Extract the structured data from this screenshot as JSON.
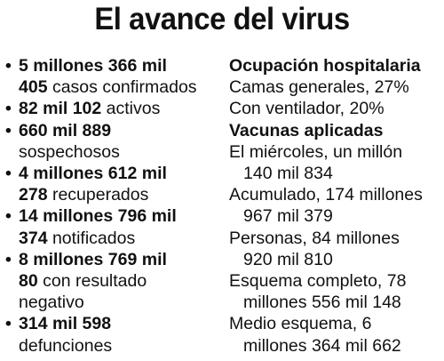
{
  "title": "El avance del virus",
  "stats": [
    {
      "l1b": "5 millones 366 mil",
      "l2b": "405",
      "l2t": " casos confirmados",
      "l3": ""
    },
    {
      "l1b": "82 mil 102",
      "l1t": " activos"
    },
    {
      "l1b": "660 mil 889",
      "l2t": "sospechosos"
    },
    {
      "l1b": "4 millones 612 mil",
      "l2b": "278",
      "l2t": " recuperados"
    },
    {
      "l1b": "14 millones 796 mil",
      "l2b": "374",
      "l2t": " notificados"
    },
    {
      "l1b": "8 millones 769 mil",
      "l2b": "80",
      "l2t": " con resultado",
      "l3": "negativo"
    },
    {
      "l1b": "314 mil 598",
      "l2t": "defunciones"
    }
  ],
  "hospital": {
    "heading": "Ocupación hospitalaria",
    "rows": [
      "Camas generales, 27%",
      "Con ventilador, 20%"
    ]
  },
  "vaccines": {
    "heading": "Vacunas aplicadas",
    "items": [
      {
        "l1": "El miércoles, un millón",
        "l2": "140 mil 834"
      },
      {
        "l1": "Acumulado, 174 millones",
        "l2": "967 mil 379"
      },
      {
        "l1": "Personas, 84 millones",
        "l2": "920 mil 810"
      },
      {
        "l1": "Esquema completo, 78",
        "l2": "millones 556 mil 148"
      },
      {
        "l1": "Medio esquema, 6",
        "l2": "millones 364 mil 662"
      }
    ]
  }
}
